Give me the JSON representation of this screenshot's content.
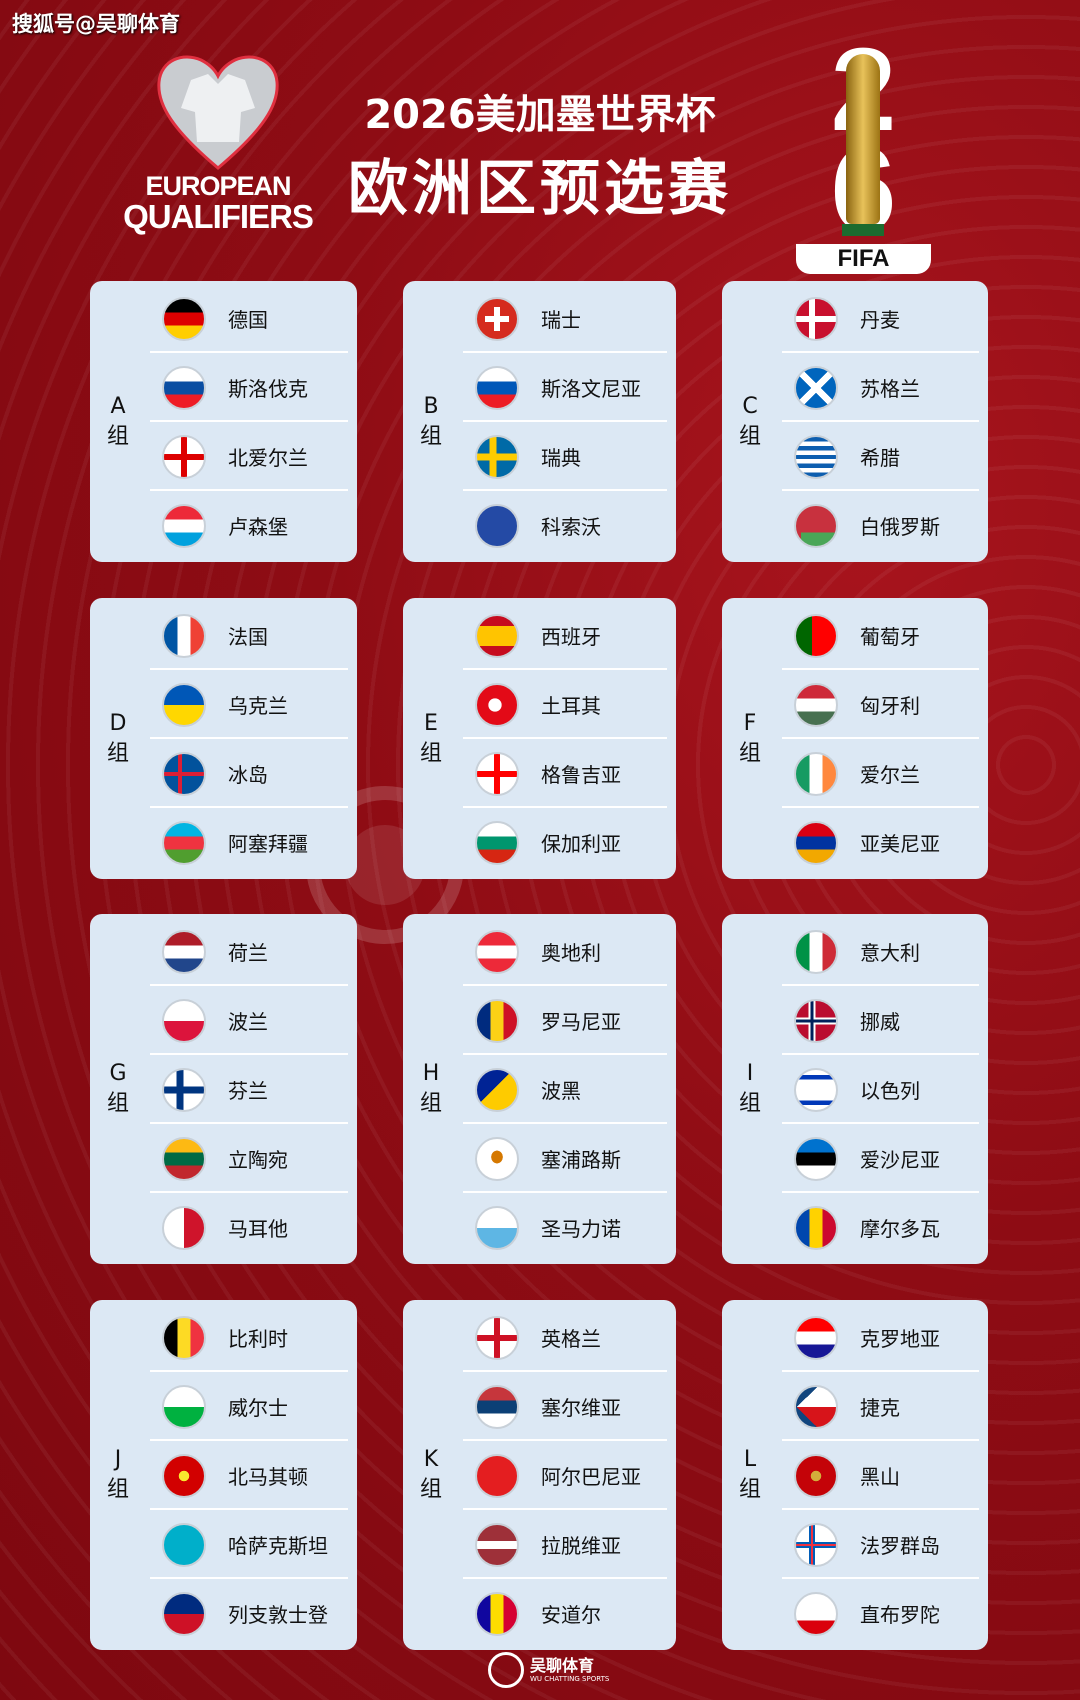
{
  "source_tag": "搜狐号@吴聊体育",
  "header": {
    "logo_line1": "EUROPEAN",
    "logo_line2": "QUALIFIERS",
    "title_line1": "2026美加墨世界杯",
    "title_line2": "欧洲区预选赛",
    "fifa_digit1": "2",
    "fifa_digit2": "6",
    "fifa_label": "FIFA"
  },
  "group_suffix": "组",
  "groups": [
    {
      "letter": "A",
      "teams": [
        {
          "name": "德国",
          "flag": "de"
        },
        {
          "name": "斯洛伐克",
          "flag": "sk"
        },
        {
          "name": "北爱尔兰",
          "flag": "nir"
        },
        {
          "name": "卢森堡",
          "flag": "lu"
        }
      ]
    },
    {
      "letter": "B",
      "teams": [
        {
          "name": "瑞士",
          "flag": "ch"
        },
        {
          "name": "斯洛文尼亚",
          "flag": "si"
        },
        {
          "name": "瑞典",
          "flag": "se"
        },
        {
          "name": "科索沃",
          "flag": "xk"
        }
      ]
    },
    {
      "letter": "C",
      "teams": [
        {
          "name": "丹麦",
          "flag": "dk"
        },
        {
          "name": "苏格兰",
          "flag": "sct"
        },
        {
          "name": "希腊",
          "flag": "gr"
        },
        {
          "name": "白俄罗斯",
          "flag": "by"
        }
      ]
    },
    {
      "letter": "D",
      "teams": [
        {
          "name": "法国",
          "flag": "fr"
        },
        {
          "name": "乌克兰",
          "flag": "ua"
        },
        {
          "name": "冰岛",
          "flag": "is"
        },
        {
          "name": "阿塞拜疆",
          "flag": "az"
        }
      ]
    },
    {
      "letter": "E",
      "teams": [
        {
          "name": "西班牙",
          "flag": "es"
        },
        {
          "name": "土耳其",
          "flag": "tr"
        },
        {
          "name": "格鲁吉亚",
          "flag": "ge"
        },
        {
          "name": "保加利亚",
          "flag": "bg"
        }
      ]
    },
    {
      "letter": "F",
      "teams": [
        {
          "name": "葡萄牙",
          "flag": "pt"
        },
        {
          "name": "匈牙利",
          "flag": "hu"
        },
        {
          "name": "爱尔兰",
          "flag": "ie"
        },
        {
          "name": "亚美尼亚",
          "flag": "am"
        }
      ]
    },
    {
      "letter": "G",
      "teams": [
        {
          "name": "荷兰",
          "flag": "nl"
        },
        {
          "name": "波兰",
          "flag": "pl"
        },
        {
          "name": "芬兰",
          "flag": "fi"
        },
        {
          "name": "立陶宛",
          "flag": "lt"
        },
        {
          "name": "马耳他",
          "flag": "mt"
        }
      ]
    },
    {
      "letter": "H",
      "teams": [
        {
          "name": "奥地利",
          "flag": "at"
        },
        {
          "name": "罗马尼亚",
          "flag": "ro"
        },
        {
          "name": "波黑",
          "flag": "ba"
        },
        {
          "name": "塞浦路斯",
          "flag": "cy"
        },
        {
          "name": "圣马力诺",
          "flag": "sm"
        }
      ]
    },
    {
      "letter": "I",
      "teams": [
        {
          "name": "意大利",
          "flag": "it"
        },
        {
          "name": "挪威",
          "flag": "no"
        },
        {
          "name": "以色列",
          "flag": "il"
        },
        {
          "name": "爱沙尼亚",
          "flag": "ee"
        },
        {
          "name": "摩尔多瓦",
          "flag": "md"
        }
      ]
    },
    {
      "letter": "J",
      "teams": [
        {
          "name": "比利时",
          "flag": "be"
        },
        {
          "name": "威尔士",
          "flag": "wal"
        },
        {
          "name": "北马其顿",
          "flag": "mk"
        },
        {
          "name": "哈萨克斯坦",
          "flag": "kz"
        },
        {
          "name": "列支敦士登",
          "flag": "li"
        }
      ]
    },
    {
      "letter": "K",
      "teams": [
        {
          "name": "英格兰",
          "flag": "eng"
        },
        {
          "name": "塞尔维亚",
          "flag": "rs"
        },
        {
          "name": "阿尔巴尼亚",
          "flag": "al"
        },
        {
          "name": "拉脱维亚",
          "flag": "lv"
        },
        {
          "name": "安道尔",
          "flag": "ad"
        }
      ]
    },
    {
      "letter": "L",
      "teams": [
        {
          "name": "克罗地亚",
          "flag": "hr"
        },
        {
          "name": "捷克",
          "flag": "cz"
        },
        {
          "name": "黑山",
          "flag": "me"
        },
        {
          "name": "法罗群岛",
          "flag": "fo"
        },
        {
          "name": "直布罗陀",
          "flag": "gi"
        }
      ]
    }
  ],
  "watermark": {
    "cn": "吴聊体育",
    "en": "WU CHATTING SPORTS"
  },
  "footer": {
    "cn": "吴聊体育",
    "en": "WU CHATTING SPORTS"
  },
  "colors": {
    "background": "#8e0c14",
    "card": "#dce8f4"
  }
}
